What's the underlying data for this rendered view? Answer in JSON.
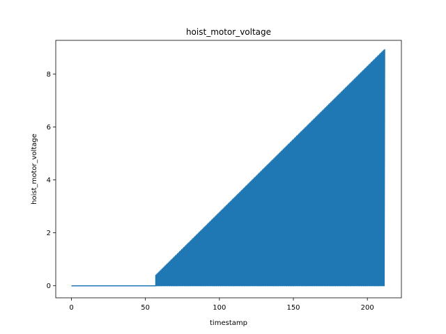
{
  "chart_data": {
    "type": "line",
    "title": "hoist_motor_voltage",
    "xlabel": "timestamp",
    "ylabel": "hoist_motor_voltage",
    "xlim": [
      -10.6,
      223.0
    ],
    "ylim": [
      -0.455,
      9.27
    ],
    "x_ticks": [
      0,
      50,
      100,
      150,
      200
    ],
    "x_tick_labels": [
      "0",
      "50",
      "100",
      "150",
      "200"
    ],
    "y_ticks": [
      0,
      2,
      4,
      6,
      8
    ],
    "y_tick_labels": [
      "0",
      "2",
      "4",
      "6",
      "8"
    ],
    "grid": false,
    "legend": "none",
    "color": "#1f77b4",
    "series": [
      {
        "x_start": 0,
        "x_end": 212,
        "flat_until": 57,
        "ramp_start_value": 0.4,
        "ramp_end_value": 8.95,
        "peak_value": 9.05,
        "baseline": 0,
        "description_of_shape": "zero until ~57, then rapid oscillation between 0 and a linearly increasing envelope"
      }
    ]
  }
}
